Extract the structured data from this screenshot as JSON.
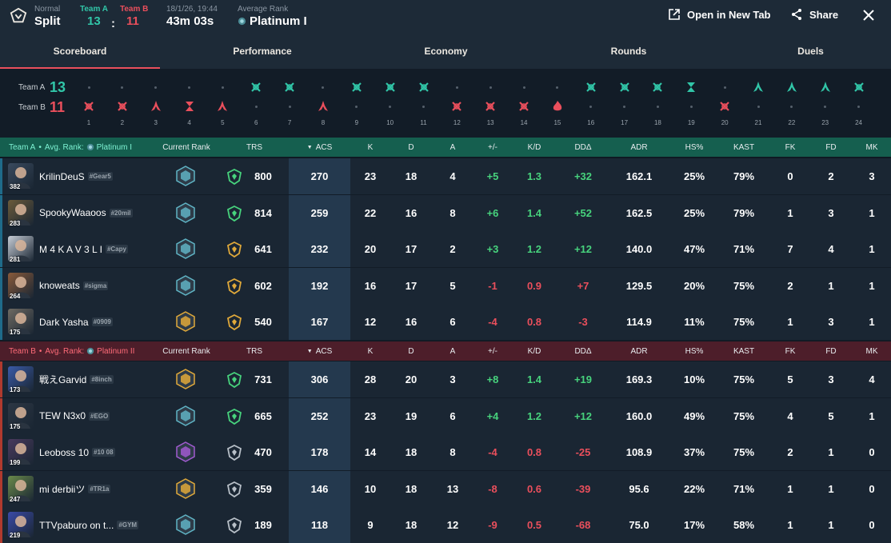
{
  "header": {
    "mode": "Normal",
    "map": "Split",
    "team_a_label": "Team A",
    "team_b_label": "Team B",
    "team_a_score": "13",
    "score_sep": ":",
    "team_b_score": "11",
    "date": "18/1/26, 19:44",
    "duration": "43m 03s",
    "avg_rank_label": "Average Rank",
    "avg_rank": "Platinum I",
    "open_new_tab": "Open in New Tab",
    "share": "Share"
  },
  "tabs": [
    "Scoreboard",
    "Performance",
    "Economy",
    "Rounds",
    "Duels"
  ],
  "timeline": {
    "team_a_label": "Team A",
    "team_a_score": "13",
    "team_b_label": "Team B",
    "team_b_score": "11",
    "rounds": [
      {
        "n": "1",
        "winner": "B",
        "icon": "elim"
      },
      {
        "n": "2",
        "winner": "B",
        "icon": "elim"
      },
      {
        "n": "3",
        "winner": "B",
        "icon": "defuse"
      },
      {
        "n": "4",
        "winner": "B",
        "icon": "time"
      },
      {
        "n": "5",
        "winner": "B",
        "icon": "defuse"
      },
      {
        "n": "6",
        "winner": "A",
        "icon": "elim"
      },
      {
        "n": "7",
        "winner": "A",
        "icon": "elim"
      },
      {
        "n": "8",
        "winner": "B",
        "icon": "defuse"
      },
      {
        "n": "9",
        "winner": "A",
        "icon": "elim"
      },
      {
        "n": "10",
        "winner": "A",
        "icon": "elim"
      },
      {
        "n": "11",
        "winner": "A",
        "icon": "elim"
      },
      {
        "n": "12",
        "winner": "B",
        "icon": "elim"
      },
      {
        "n": "13",
        "winner": "B",
        "icon": "elim"
      },
      {
        "n": "14",
        "winner": "B",
        "icon": "elim"
      },
      {
        "n": "15",
        "winner": "B",
        "icon": "spike"
      },
      {
        "n": "16",
        "winner": "A",
        "icon": "elim"
      },
      {
        "n": "17",
        "winner": "A",
        "icon": "elim"
      },
      {
        "n": "18",
        "winner": "A",
        "icon": "elim"
      },
      {
        "n": "19",
        "winner": "A",
        "icon": "time"
      },
      {
        "n": "20",
        "winner": "B",
        "icon": "elim"
      },
      {
        "n": "21",
        "winner": "A",
        "icon": "defuse"
      },
      {
        "n": "22",
        "winner": "A",
        "icon": "defuse"
      },
      {
        "n": "23",
        "winner": "A",
        "icon": "defuse"
      },
      {
        "n": "24",
        "winner": "A",
        "icon": "elim"
      }
    ]
  },
  "columns": {
    "current_rank": "Current Rank",
    "trs": "TRS",
    "acs": "ACS",
    "k": "K",
    "d": "D",
    "a": "A",
    "pm": "+/-",
    "kd": "K/D",
    "dd": "DDΔ",
    "adr": "ADR",
    "hs": "HS%",
    "kast": "KAST",
    "fk": "FK",
    "fd": "FD",
    "mk": "MK"
  },
  "team_a": {
    "label": "Team A",
    "avg_rank_label": "Avg. Rank:",
    "avg_rank": "Platinum I",
    "players": [
      {
        "level": "382",
        "name": "KrilinDeuS",
        "tag": "#Gear5",
        "rank_color": "#5fb3c4",
        "trs_color": "#47d37d",
        "trs": "800",
        "acs": "270",
        "k": "23",
        "d": "18",
        "a": "4",
        "pm": "+5",
        "kd": "1.3",
        "dd": "+32",
        "adr": "162.1",
        "hs": "25%",
        "kast": "79%",
        "fk": "0",
        "fd": "2",
        "mk": "3",
        "sign": "pos",
        "agent_color": "#3a4a5e"
      },
      {
        "level": "283",
        "name": "SpookyWaaoos",
        "tag": "#20mil",
        "rank_color": "#5fb3c4",
        "trs_color": "#47d37d",
        "trs": "814",
        "acs": "259",
        "k": "22",
        "d": "16",
        "a": "8",
        "pm": "+6",
        "kd": "1.4",
        "dd": "+52",
        "adr": "162.5",
        "hs": "25%",
        "kast": "79%",
        "fk": "1",
        "fd": "3",
        "mk": "1",
        "sign": "pos",
        "agent_color": "#6b5b3a"
      },
      {
        "level": "281",
        "name": "M 4 K A V 3 L I",
        "tag": "#Capy",
        "rank_color": "#5fb3c4",
        "trs_color": "#e0a93a",
        "trs": "641",
        "acs": "232",
        "k": "20",
        "d": "17",
        "a": "2",
        "pm": "+3",
        "kd": "1.2",
        "dd": "+12",
        "adr": "140.0",
        "hs": "47%",
        "kast": "71%",
        "fk": "7",
        "fd": "4",
        "mk": "1",
        "sign": "pos",
        "agent_color": "#c7cdd6"
      },
      {
        "level": "264",
        "name": "knoweats",
        "tag": "#sigma",
        "rank_color": "#5fb3c4",
        "trs_color": "#e0a93a",
        "trs": "602",
        "acs": "192",
        "k": "16",
        "d": "17",
        "a": "5",
        "pm": "-1",
        "kd": "0.9",
        "dd": "+7",
        "adr": "129.5",
        "hs": "20%",
        "kast": "75%",
        "fk": "2",
        "fd": "1",
        "mk": "1",
        "sign": "neg",
        "agent_color": "#8a5a3a"
      },
      {
        "level": "175",
        "name": "Dark Yasha",
        "tag": "#0909",
        "rank_color": "#e0a93a",
        "trs_color": "#e0a93a",
        "trs": "540",
        "acs": "167",
        "k": "12",
        "d": "16",
        "a": "6",
        "pm": "-4",
        "kd": "0.8",
        "dd": "-3",
        "adr": "114.9",
        "hs": "11%",
        "kast": "75%",
        "fk": "1",
        "fd": "3",
        "mk": "1",
        "sign": "neg",
        "agent_color": "#6e6a62"
      }
    ]
  },
  "team_b": {
    "label": "Team B",
    "avg_rank_label": "Avg. Rank:",
    "avg_rank": "Platinum II",
    "players": [
      {
        "level": "173",
        "name": "戦えGarvid",
        "tag": "#8inch",
        "rank_color": "#e0a93a",
        "trs_color": "#47d37d",
        "trs": "731",
        "acs": "306",
        "k": "28",
        "d": "20",
        "a": "3",
        "pm": "+8",
        "kd": "1.4",
        "dd": "+19",
        "adr": "169.3",
        "hs": "10%",
        "kast": "75%",
        "fk": "5",
        "fd": "3",
        "mk": "4",
        "sign": "pos",
        "agent_color": "#3a5aa8"
      },
      {
        "level": "175",
        "name": "TEW N3x0",
        "tag": "#EGO",
        "rank_color": "#5fb3c4",
        "trs_color": "#47d37d",
        "trs": "665",
        "acs": "252",
        "k": "23",
        "d": "19",
        "a": "6",
        "pm": "+4",
        "kd": "1.2",
        "dd": "+12",
        "adr": "160.0",
        "hs": "49%",
        "kast": "75%",
        "fk": "4",
        "fd": "5",
        "mk": "1",
        "sign": "pos",
        "agent_color": "#2d3744"
      },
      {
        "level": "199",
        "name": "Leoboss 10",
        "tag": "#10 08",
        "rank_color": "#a05ad0",
        "trs_color": "#b8c0c8",
        "trs": "470",
        "acs": "178",
        "k": "14",
        "d": "18",
        "a": "8",
        "pm": "-4",
        "kd": "0.8",
        "dd": "-25",
        "adr": "108.9",
        "hs": "37%",
        "kast": "75%",
        "fk": "2",
        "fd": "1",
        "mk": "0",
        "sign": "neg",
        "agent_color": "#4a3a5e"
      },
      {
        "level": "247",
        "name": "mi derbiiツ",
        "tag": "#TR1a",
        "rank_color": "#e0a93a",
        "trs_color": "#b8c0c8",
        "trs": "359",
        "acs": "146",
        "k": "10",
        "d": "18",
        "a": "13",
        "pm": "-8",
        "kd": "0.6",
        "dd": "-39",
        "adr": "95.6",
        "hs": "22%",
        "kast": "71%",
        "fk": "1",
        "fd": "1",
        "mk": "0",
        "sign": "neg",
        "agent_color": "#6a8a4a"
      },
      {
        "level": "219",
        "name": "TTVpaburo on t...",
        "tag": "#GYM",
        "rank_color": "#5fb3c4",
        "trs_color": "#b8c0c8",
        "trs": "189",
        "acs": "118",
        "k": "9",
        "d": "18",
        "a": "12",
        "pm": "-9",
        "kd": "0.5",
        "dd": "-68",
        "adr": "75.0",
        "hs": "17%",
        "kast": "58%",
        "fk": "1",
        "fd": "1",
        "mk": "0",
        "sign": "neg",
        "agent_color": "#3a4aa8"
      }
    ]
  },
  "colors": {
    "team_a": "#31c6a8",
    "team_b": "#ea4f5c",
    "positive": "#47d37d",
    "negative": "#ea4f5c"
  }
}
